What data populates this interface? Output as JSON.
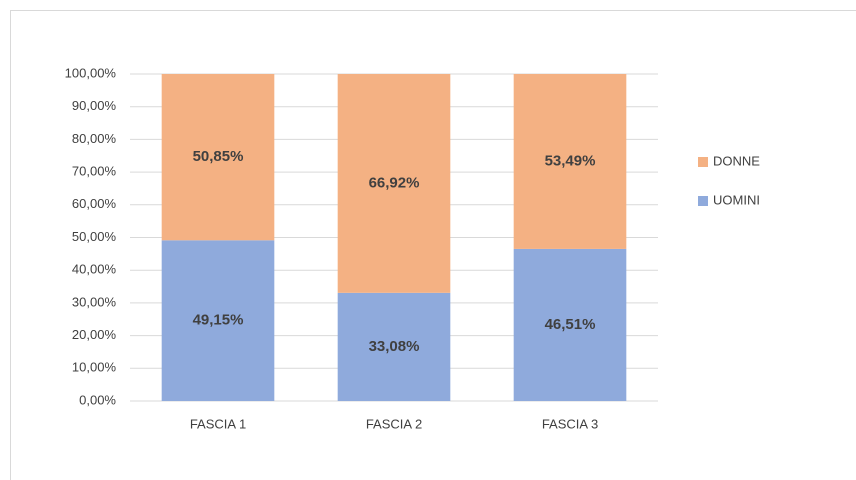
{
  "chart_data": {
    "type": "stacked_bar",
    "categories": [
      "FASCIA 1",
      "FASCIA 2",
      "FASCIA 3"
    ],
    "series": [
      {
        "name": "UOMINI",
        "color": "#8faadc",
        "values": [
          49.15,
          33.08,
          46.51
        ],
        "value_labels": [
          "49,15%",
          "33,08%",
          "46,51%"
        ]
      },
      {
        "name": "DONNE",
        "color": "#f4b183",
        "values": [
          50.85,
          66.92,
          53.49
        ],
        "value_labels": [
          "50,85%",
          "66,92%",
          "53,49%"
        ]
      }
    ],
    "ylim": [
      0,
      100
    ],
    "yticks": [
      {
        "value": 0,
        "label": "0,00%"
      },
      {
        "value": 10,
        "label": "10,00%"
      },
      {
        "value": 20,
        "label": "20,00%"
      },
      {
        "value": 30,
        "label": "30,00%"
      },
      {
        "value": 40,
        "label": "40,00%"
      },
      {
        "value": 50,
        "label": "50,00%"
      },
      {
        "value": 60,
        "label": "60,00%"
      },
      {
        "value": 70,
        "label": "70,00%"
      },
      {
        "value": 80,
        "label": "80,00%"
      },
      {
        "value": 90,
        "label": "90,00%"
      },
      {
        "value": 100,
        "label": "100,00%"
      }
    ],
    "grid": true,
    "legend": "right"
  }
}
